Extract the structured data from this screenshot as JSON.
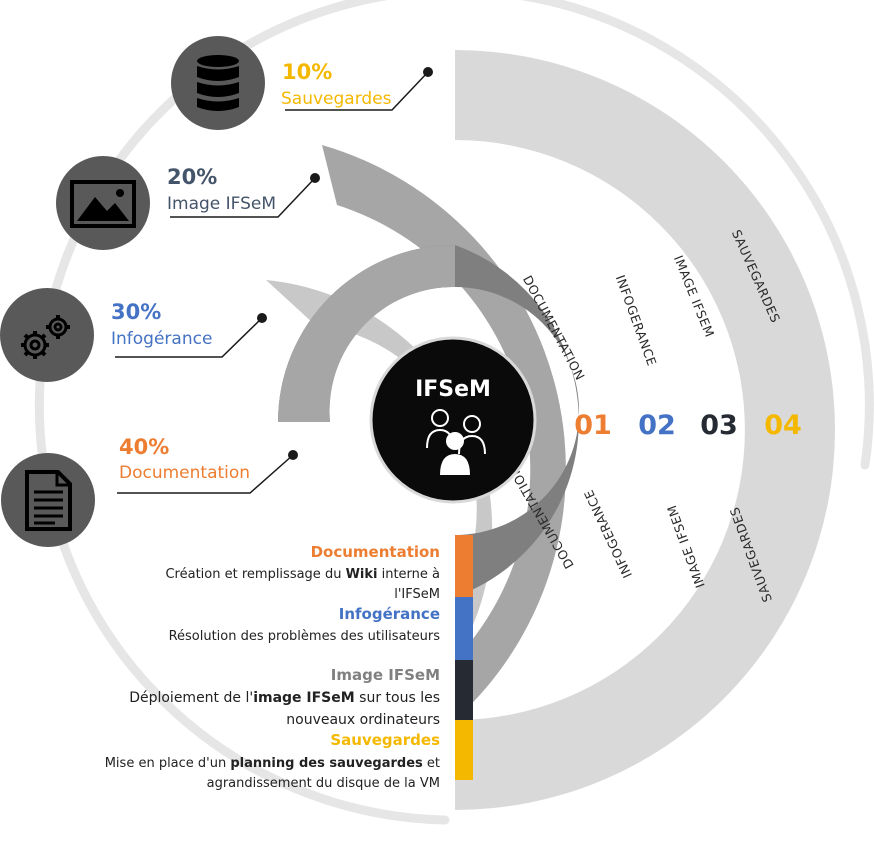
{
  "colors": {
    "documentation": "#ED7D31",
    "infogerance": "#4472C4",
    "image": "#262B33",
    "sauvegardes": "#F5B800",
    "image_title": "#808080",
    "image_pct": "#44546A"
  },
  "center": {
    "title": "IFSeM",
    "icon": "users-icon"
  },
  "segments": [
    {
      "number": "01",
      "percent": "40%",
      "category": "Documentation",
      "ring_label": "DOCUMENTATION",
      "icon": "document-icon"
    },
    {
      "number": "02",
      "percent": "30%",
      "category": "Infogérance",
      "ring_label": "INFOGERANCE",
      "icon": "gears-icon"
    },
    {
      "number": "03",
      "percent": "20%",
      "category": "Image IFSeM",
      "ring_label": "IMAGE IFSEM",
      "icon": "image-icon"
    },
    {
      "number": "04",
      "percent": "10%",
      "category": "Sauvegardes",
      "ring_label": "SAUVEGARDES",
      "icon": "database-icon"
    }
  ],
  "descriptions": [
    {
      "title": "Documentation",
      "lines": [
        [
          "Création et remplissage du ",
          "Wiki",
          " interne à"
        ],
        [
          "l'IFSeM"
        ]
      ]
    },
    {
      "title": "Infogérance",
      "lines": [
        [
          "Résolution des problèmes des utilisateurs"
        ]
      ]
    },
    {
      "title": "Image IFSeM",
      "lines": [
        [
          "Déploiement de l'",
          "image IFSeM",
          " sur tous les"
        ],
        [
          "nouveaux ordinateurs"
        ]
      ]
    },
    {
      "title": "Sauvegardes",
      "lines": [
        [
          "Mise en place d'un ",
          "planning des sauvegardes",
          " et"
        ],
        [
          "agrandissement du disque de la VM"
        ]
      ]
    }
  ]
}
